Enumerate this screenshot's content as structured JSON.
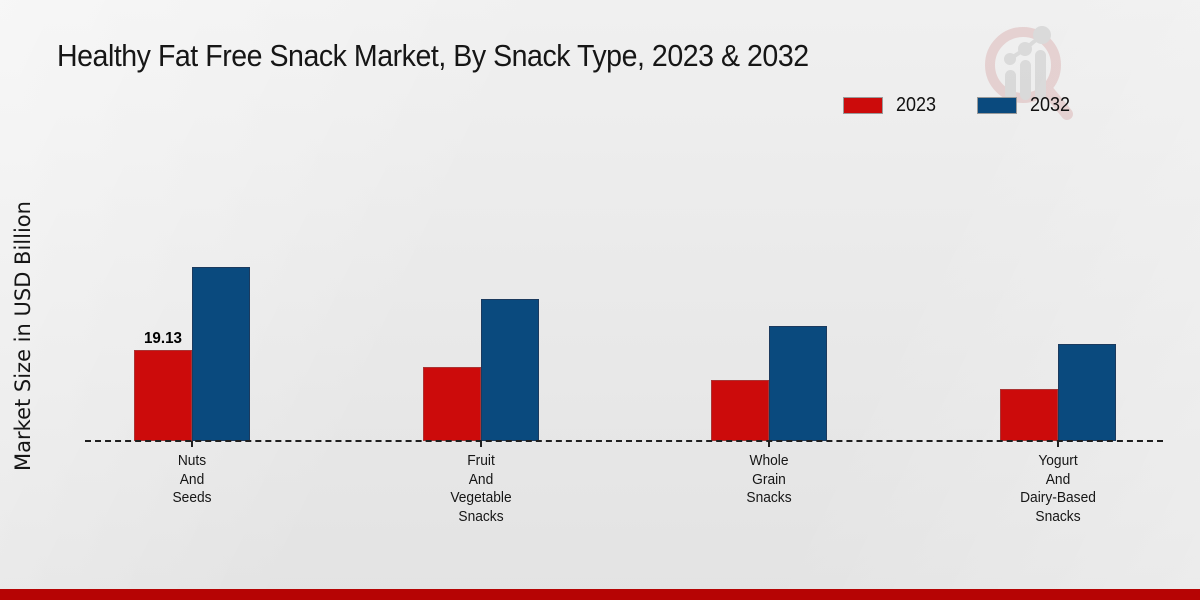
{
  "chart_data": {
    "type": "bar",
    "title": "Healthy Fat Free Snack Market, By Snack Type, 2023 & 2032",
    "ylabel": "Market Size in USD Billion",
    "xlabel": "",
    "categories": [
      "Nuts\nAnd\nSeeds",
      "Fruit\nAnd\nVegetable\nSnacks",
      "Whole\nGrain\nSnacks",
      "Yogurt\nAnd\nDairy-Based\nSnacks"
    ],
    "series": [
      {
        "name": "2023",
        "color": "#cc0b0b",
        "values": [
          19.13,
          15.6,
          12.8,
          10.9
        ]
      },
      {
        "name": "2032",
        "color": "#0a4a7e",
        "values": [
          36.5,
          29.9,
          24.2,
          20.4
        ]
      }
    ],
    "data_label": "19.13",
    "data_label_note": "only the first 2023 bar (Nuts And Seeds) shows its value",
    "ylim": [
      0,
      40
    ],
    "grid": false,
    "baseline_style": "dashed",
    "legend_position": "top-right"
  },
  "branding": {
    "watermark_icon": "magnifier-bar-chart-logo",
    "footer_color": "#b60404"
  }
}
